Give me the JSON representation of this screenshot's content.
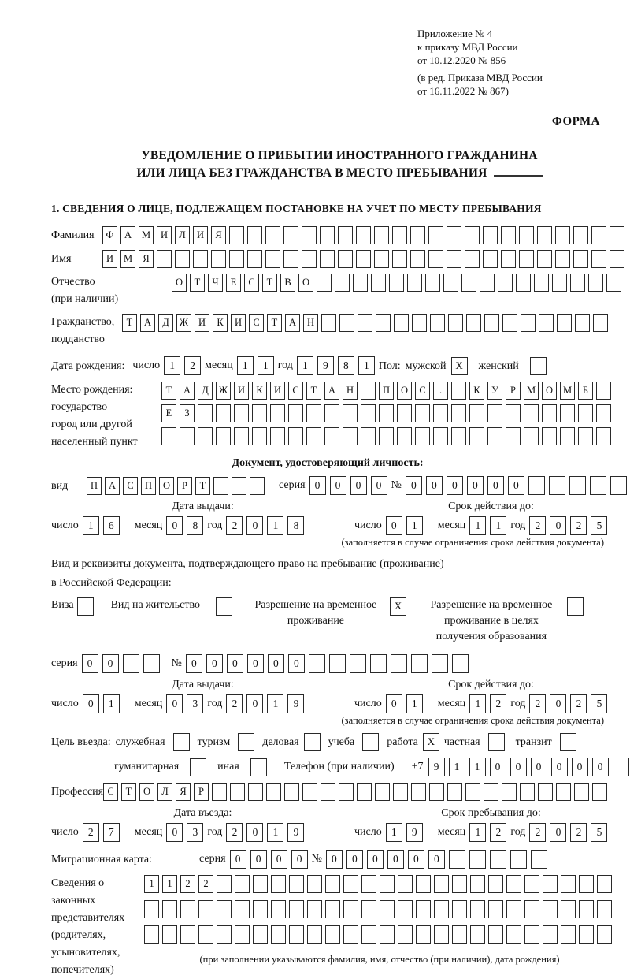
{
  "labels": {
    "day": "число",
    "month": "месяц",
    "year": "год",
    "series": "серия",
    "number": "№",
    "phone_prefix": "+7"
  },
  "header": {
    "line1": "Приложение № 4",
    "line2": "к приказу МВД России",
    "line3": "от 10.12.2020 № 856",
    "line4": "(в ред. Приказа МВД России",
    "line5": "от 16.11.2022 № 867)",
    "form_label": "ФОРМА"
  },
  "title": {
    "line1": "УВЕДОМЛЕНИЕ О ПРИБЫТИИ ИНОСТРАННОГО ГРАЖДАНИНА",
    "line2": "ИЛИ ЛИЦА БЕЗ ГРАЖДАНСТВА В МЕСТО ПРЕБЫВАНИЯ"
  },
  "section1_heading": "1. СВЕДЕНИЯ О ЛИЦЕ, ПОДЛЕЖАЩЕМ ПОСТАНОВКЕ НА УЧЕТ ПО МЕСТУ ПРЕБЫВАНИЯ",
  "person": {
    "surname": {
      "label": "Фамилия",
      "chars": "ФАМИЛИЯ",
      "total": 29
    },
    "given_name": {
      "label": "Имя",
      "chars": "ИМЯ",
      "total": 29
    },
    "patronymic": {
      "label": "Отчество",
      "label2": "(при наличии)",
      "chars": "ОТЧЕСТВО",
      "total": 25
    },
    "citizenship": {
      "label": "Гражданство,",
      "label2": "подданство",
      "chars": "ТАДЖИКИСТАН",
      "total": 27
    },
    "birth_date": {
      "label": "Дата рождения:",
      "day": "12",
      "month": "11",
      "year": "1981"
    },
    "gender": {
      "label": "Пол:",
      "male_label": "мужской",
      "male": "X",
      "female_label": "женский",
      "female": ""
    },
    "birth_place": {
      "label1": "Место рождения:",
      "label2": "государство",
      "label3": "город или другой",
      "label4": "населенный пункт",
      "row1": {
        "chars": "ТАДЖИКИСТАН ПОС. КУРМОМБ",
        "total": 25
      },
      "row2": {
        "chars": "ЕЗ",
        "total": 25
      },
      "row3": {
        "chars": "",
        "total": 25
      }
    }
  },
  "identity_doc": {
    "heading": "Документ, удостоверяющий личность:",
    "kind_label": "вид",
    "kind": {
      "chars": "ПАСПОРТ",
      "total": 10
    },
    "series": {
      "chars": "0000",
      "total": 4
    },
    "number": {
      "chars": "000000",
      "total": 11
    },
    "issue_heading": "Дата выдачи:",
    "issue": {
      "day": "16",
      "month": "08",
      "year": "2018"
    },
    "valid_heading": "Срок действия до:",
    "valid": {
      "day": "01",
      "month": "11",
      "year": "2025"
    },
    "note": "(заполняется в случае ограничения срока действия документа)"
  },
  "residence_doc": {
    "intro1": "Вид и реквизиты документа, подтверждающего право на пребывание (проживание)",
    "intro2": "в Российской Федерации:",
    "opt_visa": {
      "label": "Виза",
      "checked": ""
    },
    "opt_residence_permit": {
      "label": "Вид на жительство",
      "checked": ""
    },
    "opt_temp_residence": {
      "label": "Разрешение на временное проживание",
      "checked": "X"
    },
    "opt_temp_residence_edu": {
      "label": "Разрешение на временное проживание в целях получения образования",
      "checked": ""
    },
    "series": {
      "chars": "00",
      "total": 4
    },
    "number": {
      "chars": "000000",
      "total": 14
    },
    "issue_heading": "Дата выдачи:",
    "issue": {
      "day": "01",
      "month": "03",
      "year": "2019"
    },
    "valid_heading": "Срок действия до:",
    "valid": {
      "day": "01",
      "month": "12",
      "year": "2025"
    },
    "note": "(заполняется в случае ограничения срока действия документа)"
  },
  "visit": {
    "purpose_label": "Цель въезда:",
    "p_official": {
      "label": "служебная",
      "checked": ""
    },
    "p_tourism": {
      "label": "туризм",
      "checked": ""
    },
    "p_business": {
      "label": "деловая",
      "checked": ""
    },
    "p_study": {
      "label": "учеба",
      "checked": ""
    },
    "p_work": {
      "label": "работа",
      "checked": "X"
    },
    "p_private": {
      "label": "частная",
      "checked": ""
    },
    "p_transit": {
      "label": "транзит",
      "checked": ""
    },
    "p_humanitarian": {
      "label": "гуманитарная",
      "checked": ""
    },
    "p_other": {
      "label": "иная",
      "checked": ""
    },
    "phone_label": "Телефон (при наличии)",
    "phone": {
      "chars": "911000000",
      "total": 10
    },
    "profession_label": "Профессия",
    "profession": {
      "chars": "СТОЛЯР",
      "total": 28
    },
    "entry_heading": "Дата въезда:",
    "entry": {
      "day": "27",
      "month": "03",
      "year": "2019"
    },
    "stay_heading": "Срок пребывания до:",
    "stay": {
      "day": "19",
      "month": "12",
      "year": "2025"
    },
    "migration_card_label": "Миграционная карта:",
    "migration_series": {
      "chars": "0000",
      "total": 4
    },
    "migration_number": {
      "chars": "000000",
      "total": 11
    },
    "representatives": {
      "label1": "Сведения о",
      "label2": "законных",
      "label3": "представителях",
      "label4": "(родителях,",
      "label5": "усыновителях,",
      "label6": "попечителях)",
      "row1": {
        "chars": "1122",
        "total": 26
      },
      "row2": {
        "chars": "",
        "total": 26
      },
      "row3": {
        "chars": "",
        "total": 26
      },
      "note": "(при заполнении указываются фамилия, имя, отчество (при наличии), дата рождения)"
    }
  }
}
